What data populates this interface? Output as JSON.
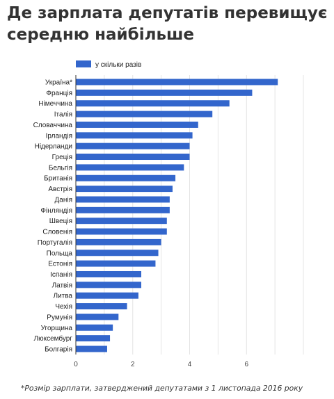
{
  "header": {
    "title_line1": "Де зарплата депутатів перевищує",
    "title_line2": "середню найбільше"
  },
  "footnote": "*Розмір зарплати, затверджений депутатами з 1 листопада 2016 року",
  "colors": {
    "bar": "#3366cc",
    "grid": "#e4e4e4",
    "axis": "#333333"
  },
  "chart_data": {
    "type": "bar",
    "orientation": "horizontal",
    "categories": [
      "Україна*",
      "Франція",
      "Німеччина",
      "Італія",
      "Словаччина",
      "Ірландія",
      "Нідерланди",
      "Греція",
      "Бельгія",
      "Британія",
      "Австрія",
      "Данія",
      "Фінляндія",
      "Швеція",
      "Словенія",
      "Португалія",
      "Польща",
      "Естонія",
      "Іспанія",
      "Латвія",
      "Литва",
      "Чехія",
      "Румунія",
      "Угорщина",
      "Люксембург",
      "Болгарія"
    ],
    "series": [
      {
        "name": "у скільки разів",
        "values": [
          7.1,
          6.2,
          5.4,
          4.8,
          4.3,
          4.1,
          4.0,
          4.0,
          3.8,
          3.5,
          3.4,
          3.3,
          3.3,
          3.2,
          3.2,
          3.0,
          2.9,
          2.8,
          2.3,
          2.3,
          2.2,
          1.8,
          1.5,
          1.3,
          1.2,
          1.1
        ]
      }
    ],
    "xlim": [
      0,
      8
    ],
    "xticks": [
      0,
      2,
      4,
      6
    ],
    "grid": true,
    "legend_position": "top-left"
  }
}
